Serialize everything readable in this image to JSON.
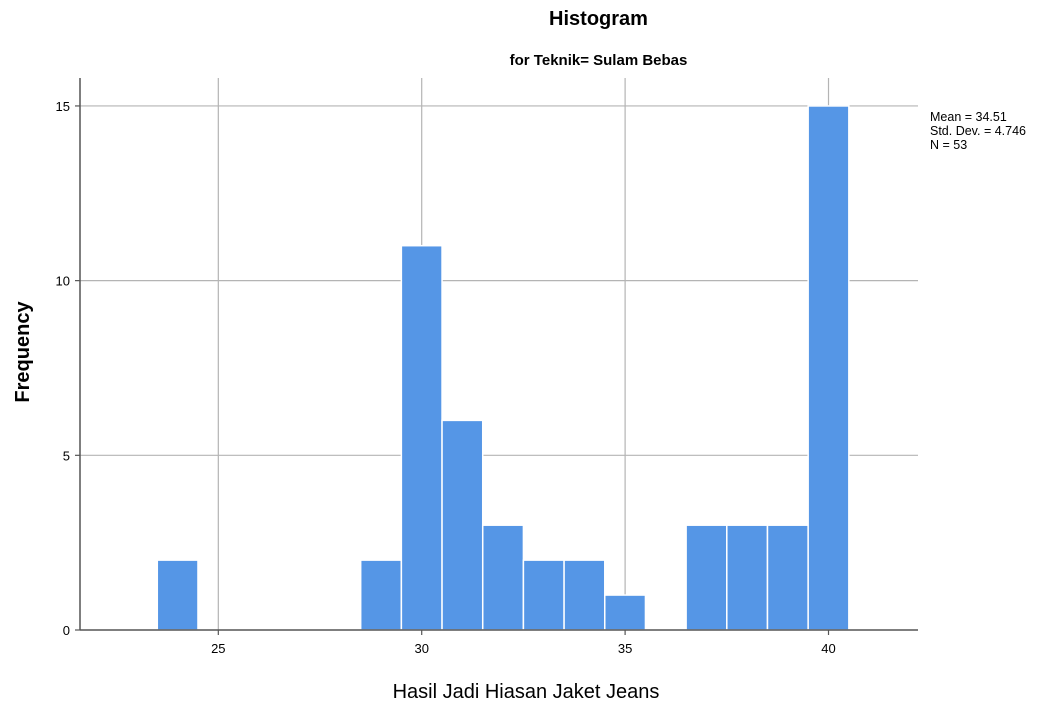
{
  "chart_data": {
    "type": "bar",
    "title": "Histogram",
    "subtitle": "for Teknik= Sulam Bebas",
    "xlabel": "Hasil Jadi Hiasan Jaket Jeans",
    "ylabel": "Frequency",
    "xlim": [
      21.6,
      42.2
    ],
    "ylim": [
      0,
      15.8
    ],
    "x_ticks": [
      25,
      30,
      35,
      40
    ],
    "y_ticks": [
      0,
      5,
      10,
      15
    ],
    "grid": true,
    "bar_color": "#5596e6",
    "bar_edge_color": "#ffffff",
    "bins": [
      {
        "start": 23.5,
        "end": 24.5,
        "count": 2
      },
      {
        "start": 28.5,
        "end": 29.5,
        "count": 2
      },
      {
        "start": 29.5,
        "end": 30.5,
        "count": 11
      },
      {
        "start": 30.5,
        "end": 31.5,
        "count": 6
      },
      {
        "start": 31.5,
        "end": 32.5,
        "count": 3
      },
      {
        "start": 32.5,
        "end": 33.5,
        "count": 2
      },
      {
        "start": 33.5,
        "end": 34.5,
        "count": 2
      },
      {
        "start": 34.5,
        "end": 35.5,
        "count": 1
      },
      {
        "start": 36.5,
        "end": 37.5,
        "count": 3
      },
      {
        "start": 37.5,
        "end": 38.5,
        "count": 3
      },
      {
        "start": 38.5,
        "end": 39.5,
        "count": 3
      },
      {
        "start": 39.5,
        "end": 40.5,
        "count": 15
      }
    ],
    "stats": {
      "mean": "Mean = 34.51",
      "std": "Std. Dev. = 4.746",
      "n": "N = 53"
    }
  }
}
